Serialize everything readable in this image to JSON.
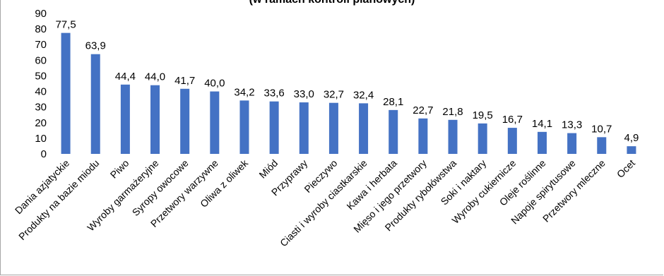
{
  "chart_data": {
    "type": "bar",
    "title": "(w ramach kontroli planowych)",
    "xlabel": "",
    "ylabel": "",
    "ylim": [
      0,
      90
    ],
    "yticks": [
      "0",
      "10",
      "20",
      "30",
      "40",
      "50",
      "60",
      "70",
      "80",
      "90"
    ],
    "grid": false,
    "legend": "none",
    "bar_color": "#4472c4",
    "categories": [
      "Dania azjatyckie",
      "Produkty na bazie miodu",
      "Piwo",
      "Wyroby garmażeryjne",
      "Syropy owocowe",
      "Przetwory warzywne",
      "Oliwa z oliwek",
      "Miód",
      "Przyprawy",
      "Pieczywo",
      "Ciasti i wyroby ciastkarskie",
      "Kawa i herbata",
      "Mięso i jego przetwory",
      "Produkty rybołówstwa",
      "Soki i naktary",
      "Wyroby cukiernicze",
      "Oleje roślinne",
      "Napoje spirytusowe",
      "Przetwory mleczne",
      "Ocet"
    ],
    "values": [
      77.5,
      63.9,
      44.4,
      44.0,
      41.7,
      40.0,
      34.2,
      33.6,
      33.0,
      32.7,
      32.4,
      28.1,
      22.7,
      21.8,
      19.5,
      16.7,
      14.1,
      13.3,
      10.7,
      4.9
    ],
    "value_labels": [
      "77,5",
      "63,9",
      "44,4",
      "44,0",
      "41,7",
      "40,0",
      "34,2",
      "33,6",
      "33,0",
      "32,7",
      "32,4",
      "28,1",
      "22,7",
      "21,8",
      "19,5",
      "16,7",
      "14,1",
      "13,3",
      "10,7",
      "4,9"
    ]
  }
}
